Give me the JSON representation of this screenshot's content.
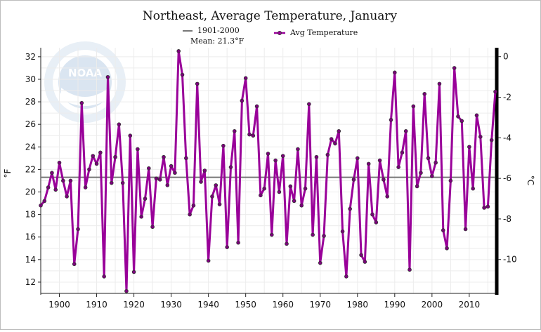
{
  "chart_data": {
    "type": "line",
    "title": "Northeast, Average Temperature, January",
    "ylabel": "°F",
    "y2label": "°C",
    "xlim": [
      1895,
      2017
    ],
    "ylim": [
      11,
      32.8
    ],
    "y2lim": [
      -11.67,
      0.44
    ],
    "xticks": [
      1900,
      1910,
      1920,
      1930,
      1940,
      1950,
      1960,
      1970,
      1980,
      1990,
      2000,
      2010
    ],
    "yticks": [
      12,
      14,
      16,
      18,
      20,
      22,
      24,
      26,
      28,
      30,
      32
    ],
    "y2ticks": [
      -10,
      -8,
      -6,
      -4,
      -2,
      0
    ],
    "grid": true,
    "reference_line": {
      "label": "1901-2000",
      "sublabel": "Mean: 21.3°F",
      "value": 21.3,
      "color": "#777777"
    },
    "series": [
      {
        "name": "Avg Temperature",
        "color": "#990099",
        "x": [
          1895,
          1896,
          1897,
          1898,
          1899,
          1900,
          1901,
          1902,
          1903,
          1904,
          1905,
          1906,
          1907,
          1908,
          1909,
          1910,
          1911,
          1912,
          1913,
          1914,
          1915,
          1916,
          1917,
          1918,
          1919,
          1920,
          1921,
          1922,
          1923,
          1924,
          1925,
          1926,
          1927,
          1928,
          1929,
          1930,
          1931,
          1932,
          1933,
          1934,
          1935,
          1936,
          1937,
          1938,
          1939,
          1940,
          1941,
          1942,
          1943,
          1944,
          1945,
          1946,
          1947,
          1948,
          1949,
          1950,
          1951,
          1952,
          1953,
          1954,
          1955,
          1956,
          1957,
          1958,
          1959,
          1960,
          1961,
          1962,
          1963,
          1964,
          1965,
          1966,
          1967,
          1968,
          1969,
          1970,
          1971,
          1972,
          1973,
          1974,
          1975,
          1976,
          1977,
          1978,
          1979,
          1980,
          1981,
          1982,
          1983,
          1984,
          1985,
          1986,
          1987,
          1988,
          1989,
          1990,
          1991,
          1992,
          1993,
          1994,
          1995,
          1996,
          1997,
          1998,
          1999,
          2000,
          2001,
          2002,
          2003,
          2004,
          2005,
          2006,
          2007,
          2008,
          2009,
          2010,
          2011,
          2012,
          2013,
          2014,
          2015,
          2016,
          2017
        ],
        "values": [
          18.8,
          19.2,
          20.4,
          21.7,
          20.2,
          22.6,
          21.0,
          19.6,
          21.0,
          13.6,
          16.7,
          27.9,
          20.4,
          22.0,
          23.2,
          22.5,
          23.5,
          12.5,
          30.2,
          20.8,
          23.1,
          26.0,
          20.8,
          11.2,
          25.0,
          12.9,
          23.8,
          17.8,
          19.4,
          22.1,
          16.9,
          21.2,
          21.1,
          23.1,
          20.6,
          22.3,
          21.7,
          32.5,
          30.4,
          23.0,
          18.0,
          18.8,
          29.6,
          20.9,
          21.9,
          13.9,
          19.6,
          20.6,
          18.9,
          24.1,
          15.1,
          22.2,
          25.4,
          15.5,
          28.1,
          30.1,
          25.1,
          25.0,
          27.6,
          19.7,
          20.3,
          23.4,
          16.2,
          22.8,
          20.0,
          23.2,
          15.4,
          20.5,
          19.2,
          23.8,
          18.8,
          20.3,
          27.8,
          16.2,
          23.1,
          13.7,
          16.1,
          23.3,
          24.7,
          24.3,
          25.4,
          16.5,
          12.5,
          18.5,
          21.1,
          23.0,
          14.4,
          13.8,
          22.5,
          18.0,
          17.3,
          22.8,
          21.1,
          19.6,
          26.4,
          30.6,
          22.2,
          23.5,
          25.4,
          13.1,
          27.6,
          20.5,
          21.7,
          28.7,
          23.0,
          21.4,
          22.6,
          29.6,
          16.6,
          15.0,
          21.0,
          31.0,
          26.7,
          26.3,
          16.7,
          24.0,
          20.3,
          26.8,
          24.9,
          18.6,
          18.7,
          24.6,
          28.9
        ]
      }
    ]
  }
}
